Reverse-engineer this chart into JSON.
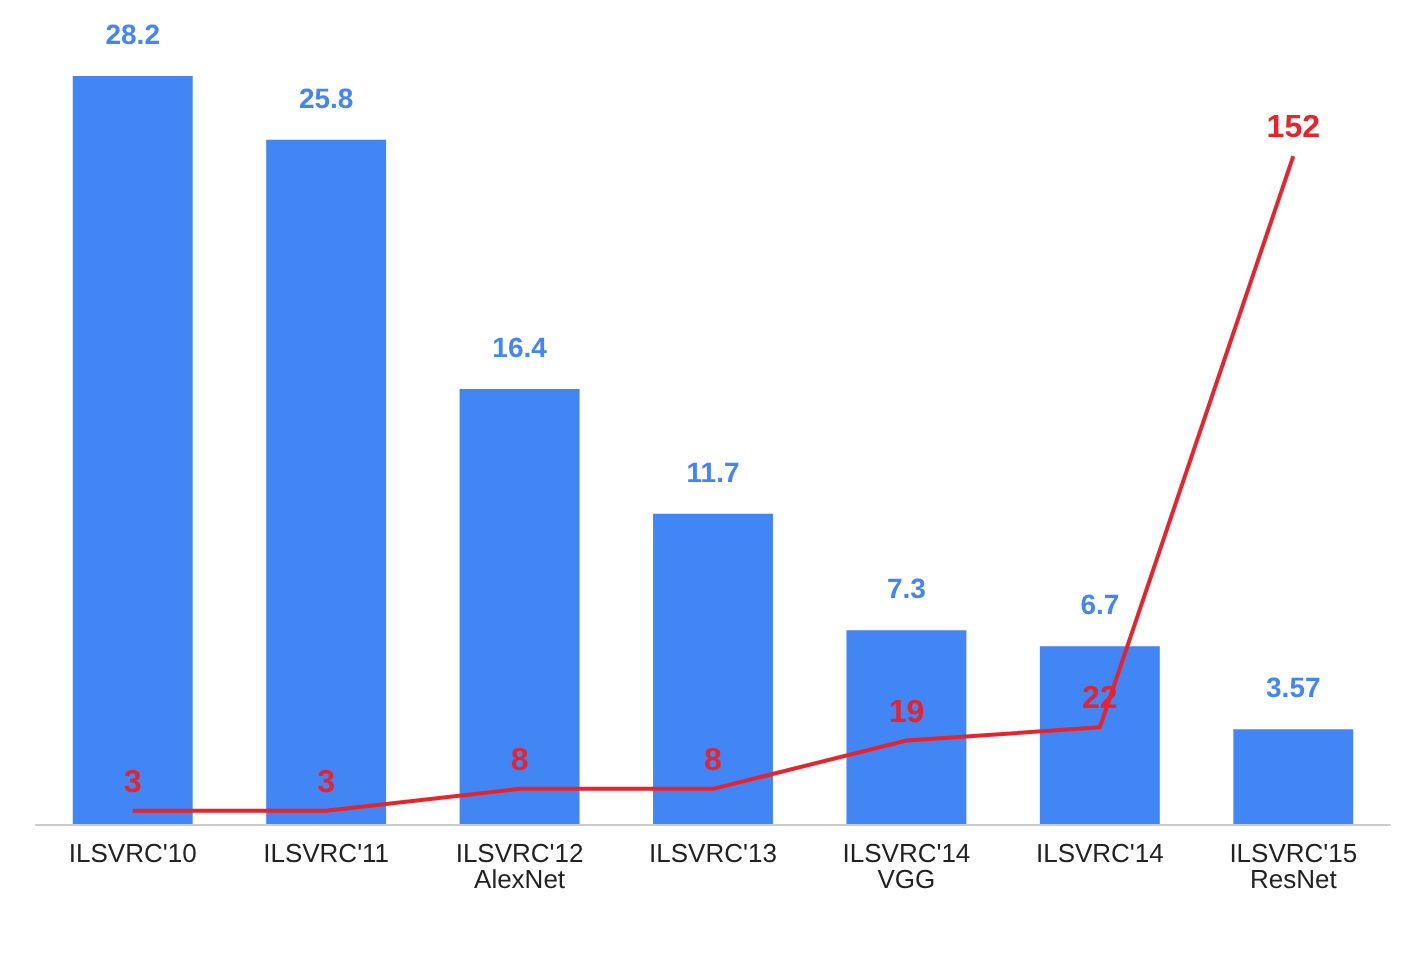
{
  "chart_data": {
    "type": "bar",
    "categories": [
      "ILSVRC'10",
      "ILSVRC'11",
      "ILSVRC'12\nAlexNet",
      "ILSVRC'13",
      "ILSVRC'14\nVGG",
      "ILSVRC'14",
      "ILSVRC'15\nResNet"
    ],
    "series": [
      {
        "color": "#4285f4",
        "values": [
          28.2,
          25.8,
          16.4,
          11.7,
          7.3,
          6.7,
          3.57
        ]
      },
      {
        "type": "line",
        "axis": "y2",
        "color": "#e8232b",
        "values": [
          3,
          3,
          8,
          8,
          19,
          22,
          152
        ]
      }
    ],
    "data_labels": true,
    "marker": "none",
    "line_style": "solid",
    "tick_labels": "x"
  }
}
